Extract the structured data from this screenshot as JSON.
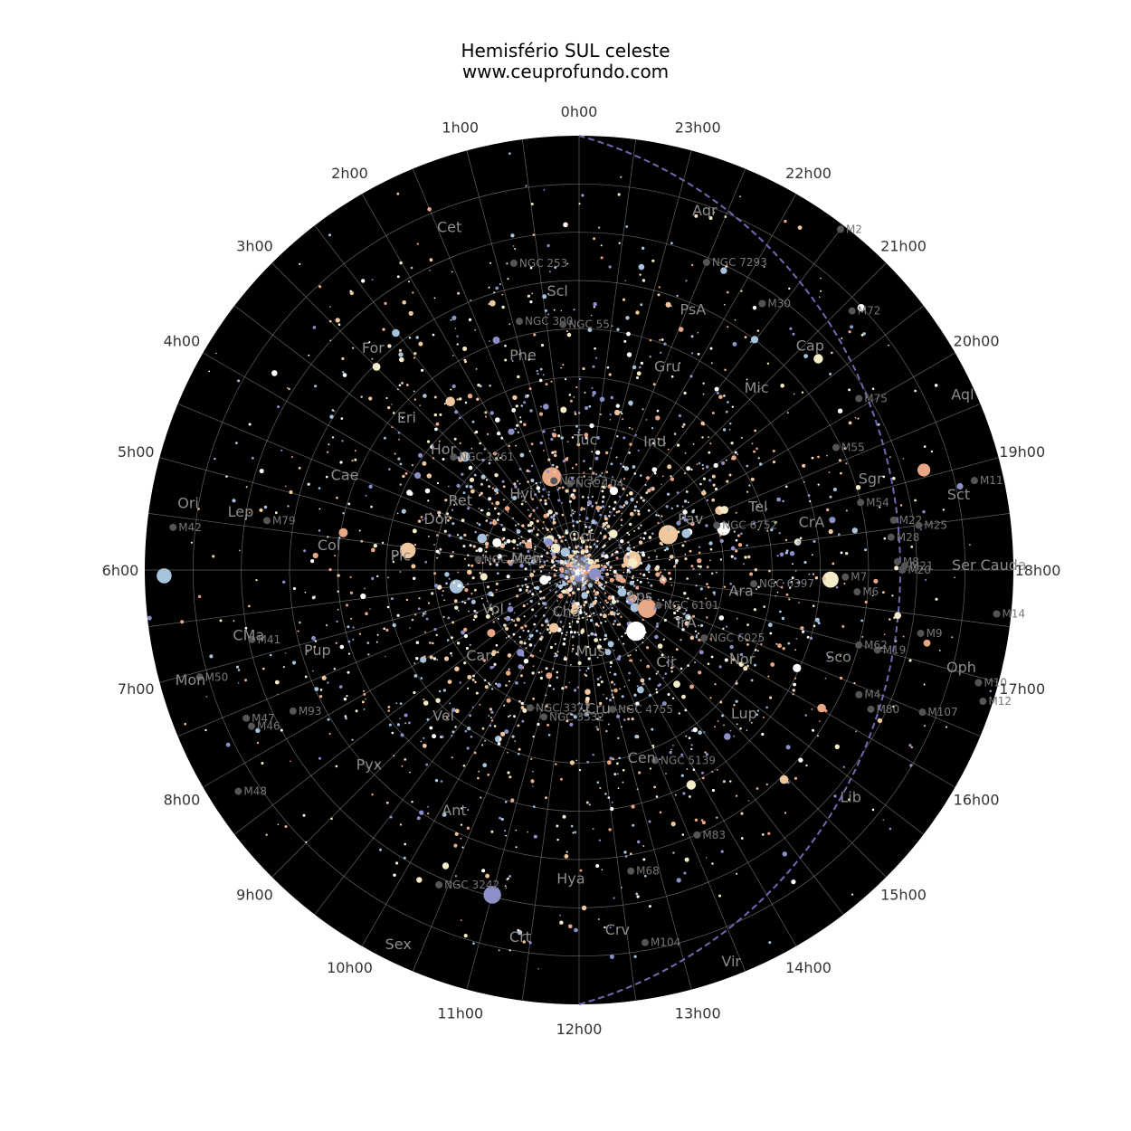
{
  "title": "Hemisfério SUL celeste",
  "subtitle": "www.ceuprofundo.com",
  "ra_labels": [
    "0h00",
    "1h00",
    "2h00",
    "3h00",
    "4h00",
    "5h00",
    "6h00",
    "7h00",
    "8h00",
    "9h00",
    "10h00",
    "11h00",
    "12h00",
    "13h00",
    "14h00",
    "15h00",
    "16h00",
    "17h00",
    "18h00",
    "19h00",
    "20h00",
    "21h00",
    "22h00",
    "23h00"
  ],
  "colors": {
    "sky": "#000000",
    "grid": "#8a8a8a",
    "ecliptic": "#6f6ab0",
    "label": "#8c8c8c",
    "star_palette": [
      "#ffffff",
      "#f4ecc8",
      "#e8a888",
      "#a8c4dc",
      "#8c90c8",
      "#f0c8a0"
    ]
  },
  "constellations": [
    {
      "name": "Cet",
      "ra": 1.4,
      "dec": -15
    },
    {
      "name": "Aqr",
      "ra": 22.7,
      "dec": -12
    },
    {
      "name": "Scl",
      "ra": 0.3,
      "dec": -33
    },
    {
      "name": "PsA",
      "ra": 22.4,
      "dec": -32
    },
    {
      "name": "For",
      "ra": 2.9,
      "dec": -28
    },
    {
      "name": "Phe",
      "ra": 1.0,
      "dec": -45
    },
    {
      "name": "Gru",
      "ra": 22.4,
      "dec": -45
    },
    {
      "name": "Cap",
      "ra": 20.9,
      "dec": -24
    },
    {
      "name": "Mic",
      "ra": 21.0,
      "dec": -38
    },
    {
      "name": "Eri",
      "ra": 3.3,
      "dec": -43
    },
    {
      "name": "Tuc",
      "ra": 23.8,
      "dec": -64
    },
    {
      "name": "Ind",
      "ra": 21.9,
      "dec": -60
    },
    {
      "name": "Hor",
      "ra": 3.3,
      "dec": -53
    },
    {
      "name": "Hyi",
      "ra": 2.6,
      "dec": -71
    },
    {
      "name": "Ret",
      "ra": 4.1,
      "dec": -62
    },
    {
      "name": "Dor",
      "ra": 4.8,
      "dec": -59
    },
    {
      "name": "Cae",
      "ra": 4.6,
      "dec": -38
    },
    {
      "name": "Col",
      "ra": 5.7,
      "dec": -38
    },
    {
      "name": "Lep",
      "ra": 5.4,
      "dec": -19
    },
    {
      "name": "Ori",
      "ra": 5.4,
      "dec": -8
    },
    {
      "name": "Pic",
      "ra": 5.8,
      "dec": -53
    },
    {
      "name": "Men",
      "ra": 5.5,
      "dec": -79
    },
    {
      "name": "Oct",
      "ra": 23.7,
      "dec": -84
    },
    {
      "name": "Pav",
      "ra": 19.5,
      "dec": -65
    },
    {
      "name": "Tel",
      "ra": 19.2,
      "dec": -51
    },
    {
      "name": "CrA",
      "ra": 18.7,
      "dec": -41
    },
    {
      "name": "Sgr",
      "ra": 19.1,
      "dec": -27
    },
    {
      "name": "Sct",
      "ra": 18.7,
      "dec": -10
    },
    {
      "name": "Aql",
      "ra": 19.6,
      "dec": -3
    },
    {
      "name": "Ser Cauda",
      "ra": 18.0,
      "dec": -5
    },
    {
      "name": "Oph",
      "ra": 17.0,
      "dec": -8
    },
    {
      "name": "Ara",
      "ra": 17.4,
      "dec": -56
    },
    {
      "name": "Aps",
      "ra": 16.2,
      "dec": -76
    },
    {
      "name": "TrA",
      "ra": 16.1,
      "dec": -65
    },
    {
      "name": "Nor",
      "ra": 16.0,
      "dec": -51
    },
    {
      "name": "Sco",
      "ra": 16.7,
      "dec": -33
    },
    {
      "name": "Lup",
      "ra": 15.2,
      "dec": -44
    },
    {
      "name": "Lib",
      "ra": 15.3,
      "dec": -16
    },
    {
      "name": "Cir",
      "ra": 14.8,
      "dec": -63
    },
    {
      "name": "Cen",
      "ra": 13.2,
      "dec": -48
    },
    {
      "name": "Cru",
      "ra": 12.5,
      "dec": -60
    },
    {
      "name": "Mus",
      "ra": 12.5,
      "dec": -72
    },
    {
      "name": "Cha",
      "ra": 11.0,
      "dec": -80
    },
    {
      "name": "Vol",
      "ra": 7.8,
      "dec": -70
    },
    {
      "name": "Car",
      "ra": 8.8,
      "dec": -62
    },
    {
      "name": "Vel",
      "ra": 9.2,
      "dec": -48
    },
    {
      "name": "Pup",
      "ra": 7.2,
      "dec": -33
    },
    {
      "name": "CMa",
      "ra": 6.8,
      "dec": -20
    },
    {
      "name": "Mon",
      "ra": 7.1,
      "dec": -6
    },
    {
      "name": "Pyx",
      "ra": 8.9,
      "dec": -30
    },
    {
      "name": "Hya",
      "ra": 11.9,
      "dec": -25
    },
    {
      "name": "Ant",
      "ra": 10.2,
      "dec": -33
    },
    {
      "name": "Crt",
      "ra": 11.4,
      "dec": -12
    },
    {
      "name": "Crv",
      "ra": 12.4,
      "dec": -14
    },
    {
      "name": "Vir",
      "ra": 13.4,
      "dec": -2
    },
    {
      "name": "Sex",
      "ra": 10.3,
      "dec": -3
    }
  ],
  "deep_sky": [
    {
      "name": "M2",
      "ra": 21.5,
      "dec": -1
    },
    {
      "name": "NGC 253",
      "ra": 0.8,
      "dec": -25
    },
    {
      "name": "NGC 300",
      "ra": 0.9,
      "dec": -37
    },
    {
      "name": "NGC 55",
      "ra": 0.25,
      "dec": -39
    },
    {
      "name": "NGC 7293",
      "ra": 22.5,
      "dec": -21
    },
    {
      "name": "M30",
      "ra": 21.7,
      "dec": -23
    },
    {
      "name": "M72",
      "ra": 20.9,
      "dec": -12
    },
    {
      "name": "M75",
      "ra": 20.1,
      "dec": -22
    },
    {
      "name": "M55",
      "ra": 19.7,
      "dec": -31
    },
    {
      "name": "M54",
      "ra": 18.9,
      "dec": -30
    },
    {
      "name": "M22",
      "ra": 18.6,
      "dec": -24
    },
    {
      "name": "M28",
      "ra": 18.4,
      "dec": -25
    },
    {
      "name": "M11",
      "ra": 18.85,
      "dec": -6
    },
    {
      "name": "M25",
      "ra": 18.5,
      "dec": -19
    },
    {
      "name": "M8",
      "ra": 18.1,
      "dec": -24
    },
    {
      "name": "M20",
      "ra": 18.0,
      "dec": -23
    },
    {
      "name": "M21",
      "ra": 18.05,
      "dec": -22.5
    },
    {
      "name": "M14",
      "ra": 17.6,
      "dec": -3
    },
    {
      "name": "M9",
      "ra": 17.3,
      "dec": -18
    },
    {
      "name": "M19",
      "ra": 17.0,
      "dec": -26
    },
    {
      "name": "M62",
      "ra": 17.0,
      "dec": -30
    },
    {
      "name": "M10",
      "ra": 16.95,
      "dec": -4
    },
    {
      "name": "M12",
      "ra": 16.8,
      "dec": -2
    },
    {
      "name": "M107",
      "ra": 16.5,
      "dec": -13
    },
    {
      "name": "M4",
      "ra": 16.4,
      "dec": -26.5
    },
    {
      "name": "M80",
      "ra": 16.3,
      "dec": -23
    },
    {
      "name": "M7",
      "ra": 17.9,
      "dec": -34.8
    },
    {
      "name": "M6",
      "ra": 17.7,
      "dec": -32.2
    },
    {
      "name": "NGC 6397",
      "ra": 17.7,
      "dec": -53.7
    },
    {
      "name": "NGC 6752",
      "ra": 19.2,
      "dec": -60
    },
    {
      "name": "NGC 6101",
      "ra": 16.4,
      "dec": -72
    },
    {
      "name": "NGC 6025",
      "ra": 16.1,
      "dec": -60.5
    },
    {
      "name": "NGC 5139",
      "ra": 13.45,
      "dec": -47.5
    },
    {
      "name": "NGC 4755",
      "ra": 12.9,
      "dec": -60.3
    },
    {
      "name": "NGC 3532",
      "ra": 11.1,
      "dec": -58.7
    },
    {
      "name": "NGC 3372",
      "ra": 10.7,
      "dec": -59.7
    },
    {
      "name": "NGC 2070",
      "ra": 5.6,
      "dec": -69
    },
    {
      "name": "NGC 104",
      "ra": 0.4,
      "dec": -72
    },
    {
      "name": "NGC 362",
      "ra": 1.05,
      "dec": -70.8
    },
    {
      "name": "NGC 1261",
      "ra": 3.2,
      "dec": -55
    },
    {
      "name": "NGC 3242",
      "ra": 10.4,
      "dec": -18.6
    },
    {
      "name": "M83",
      "ra": 13.6,
      "dec": -29.9
    },
    {
      "name": "M68",
      "ra": 12.65,
      "dec": -26.7
    },
    {
      "name": "M104",
      "ra": 12.67,
      "dec": -11.6
    },
    {
      "name": "M79",
      "ra": 5.4,
      "dec": -24.5
    },
    {
      "name": "M41",
      "ra": 6.8,
      "dec": -20.7
    },
    {
      "name": "M47",
      "ra": 7.6,
      "dec": -14.5
    },
    {
      "name": "M46",
      "ra": 7.7,
      "dec": -14.8
    },
    {
      "name": "M50",
      "ra": 7.05,
      "dec": -8.3
    },
    {
      "name": "M48",
      "ra": 8.2,
      "dec": -5.8
    },
    {
      "name": "M42",
      "ra": 5.6,
      "dec": -5.4
    },
    {
      "name": "M93",
      "ra": 7.75,
      "dec": -23.9
    }
  ]
}
